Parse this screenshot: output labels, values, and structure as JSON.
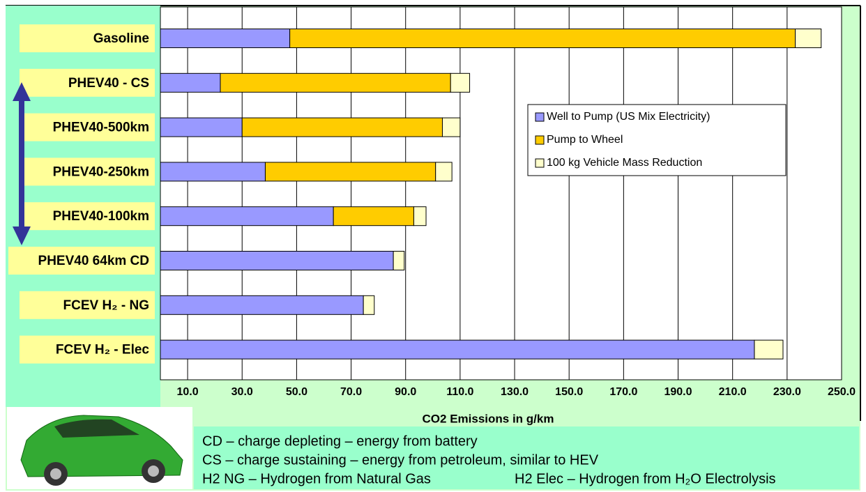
{
  "chart_data": {
    "type": "hbar",
    "stacked": true,
    "categories": [
      "Gasoline",
      "PHEV40 - CS",
      "PHEV40-500km",
      "PHEV40-250km",
      "PHEV40-100km",
      "PHEV40 64km CD",
      "FCEV H₂ - NG",
      "FCEV H₂ - Elec"
    ],
    "series": [
      {
        "name": "Well to Pump (US Mix Electricity)",
        "color": "#9999ff",
        "values": [
          47.5,
          22,
          30,
          38.5,
          63.5,
          85.5,
          74.5,
          218
        ]
      },
      {
        "name": "Pump to Wheel",
        "color": "#ffcc00",
        "values": [
          185.5,
          84.5,
          73.5,
          62.5,
          29.5,
          0,
          0,
          0
        ]
      },
      {
        "name": "100 kg Vehicle Mass Reduction",
        "color": "#ffffcc",
        "values": [
          9.5,
          7,
          6.5,
          6,
          4.5,
          4,
          4,
          10.5
        ]
      }
    ],
    "xlim": [
      0,
      250
    ],
    "xticks": [
      {
        "value": 10,
        "label": "10.0"
      },
      {
        "value": 30,
        "label": "30.0"
      },
      {
        "value": 50,
        "label": "50.0"
      },
      {
        "value": 70,
        "label": "70.0"
      },
      {
        "value": 90,
        "label": "90.0"
      },
      {
        "value": 110,
        "label": "110.0"
      },
      {
        "value": 130,
        "label": "130.0"
      },
      {
        "value": 150,
        "label": "150.0"
      },
      {
        "value": 170,
        "label": "170.0"
      },
      {
        "value": 190,
        "label": "190.0"
      },
      {
        "value": 210,
        "label": "210.0"
      },
      {
        "value": 230,
        "label": "230.0"
      },
      {
        "value": 250,
        "label": "250.0"
      }
    ],
    "xlabel": "CO2 Emissions  in   g/km",
    "grid": true,
    "annotations": [
      "CD – charge depleting – energy from battery",
      "CS – charge sustaining – energy from petroleum, similar to HEV",
      "H2 NG – Hydrogen from Natural Gas",
      "H2 Elec – Hydrogen from H₂O Electrolysis"
    ]
  }
}
